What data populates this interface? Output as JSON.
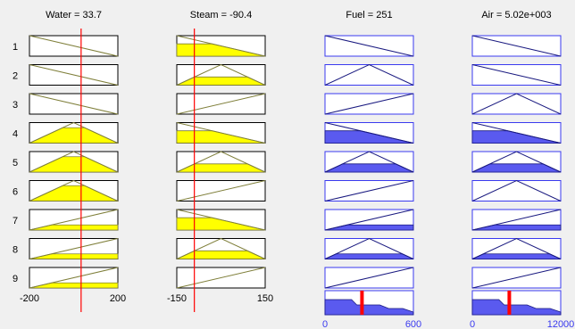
{
  "inputs": [
    {
      "name": "Water",
      "value_label": "Water = 33.7",
      "value": 33.7,
      "range": [
        -200,
        200
      ],
      "range_labels": [
        "-200",
        "200"
      ],
      "rules": [
        {
          "mf": "dec",
          "fill": 0
        },
        {
          "mf": "dec",
          "fill": 0
        },
        {
          "mf": "dec",
          "fill": 0
        },
        {
          "mf": "tri",
          "fill": 0.75
        },
        {
          "mf": "tri",
          "fill": 0.75
        },
        {
          "mf": "tri",
          "fill": 0.75
        },
        {
          "mf": "inc",
          "fill": 0.25
        },
        {
          "mf": "inc",
          "fill": 0.25
        },
        {
          "mf": "inc",
          "fill": 0.25
        }
      ]
    },
    {
      "name": "Steam",
      "value_label": "Steam = -90.4",
      "value": -90.4,
      "range": [
        -150,
        150
      ],
      "range_labels": [
        "-150",
        "150"
      ],
      "rules": [
        {
          "mf": "dec",
          "fill": 0.6
        },
        {
          "mf": "tri",
          "fill": 0.4
        },
        {
          "mf": "inc",
          "fill": 0
        },
        {
          "mf": "dec",
          "fill": 0.6
        },
        {
          "mf": "tri",
          "fill": 0.4
        },
        {
          "mf": "inc",
          "fill": 0
        },
        {
          "mf": "dec",
          "fill": 0.6
        },
        {
          "mf": "tri",
          "fill": 0.4
        },
        {
          "mf": "inc",
          "fill": 0
        }
      ]
    }
  ],
  "outputs": [
    {
      "name": "Fuel",
      "value_label": "Fuel = 251",
      "value": 251,
      "range": [
        0,
        600
      ],
      "range_labels": [
        "0",
        "600"
      ],
      "rules": [
        {
          "mf": "dec",
          "fill": 0
        },
        {
          "mf": "tri",
          "fill": 0
        },
        {
          "mf": "inc",
          "fill": 0
        },
        {
          "mf": "dec",
          "fill": 0.6
        },
        {
          "mf": "tri",
          "fill": 0.4
        },
        {
          "mf": "inc",
          "fill": 0
        },
        {
          "mf": "inc",
          "fill": 0.25
        },
        {
          "mf": "tri",
          "fill": 0.25
        },
        {
          "mf": "inc",
          "fill": 0
        }
      ]
    },
    {
      "name": "Air",
      "value_label": "Air = 5.02e+003",
      "value": 5020,
      "range": [
        0,
        12000
      ],
      "range_labels": [
        "0",
        "12000"
      ],
      "rules": [
        {
          "mf": "dec",
          "fill": 0
        },
        {
          "mf": "dec",
          "fill": 0
        },
        {
          "mf": "tri",
          "fill": 0
        },
        {
          "mf": "dec",
          "fill": 0.6
        },
        {
          "mf": "tri",
          "fill": 0.4
        },
        {
          "mf": "tri",
          "fill": 0
        },
        {
          "mf": "inc",
          "fill": 0.25
        },
        {
          "mf": "tri",
          "fill": 0.25
        },
        {
          "mf": "inc",
          "fill": 0
        }
      ]
    }
  ],
  "rule_numbers": [
    "1",
    "2",
    "3",
    "4",
    "5",
    "6",
    "7",
    "8",
    "9"
  ],
  "colors": {
    "background": "#f0f0f0",
    "box_border": "#000000",
    "input_line": "#7f7f3a",
    "input_fill": "#ffff00",
    "output_line": "#1a1a80",
    "output_fill": "#5a5aef",
    "output_border": "#3a3aef",
    "index_line": "#ff0000",
    "range_label_output": "#3a3aef"
  }
}
